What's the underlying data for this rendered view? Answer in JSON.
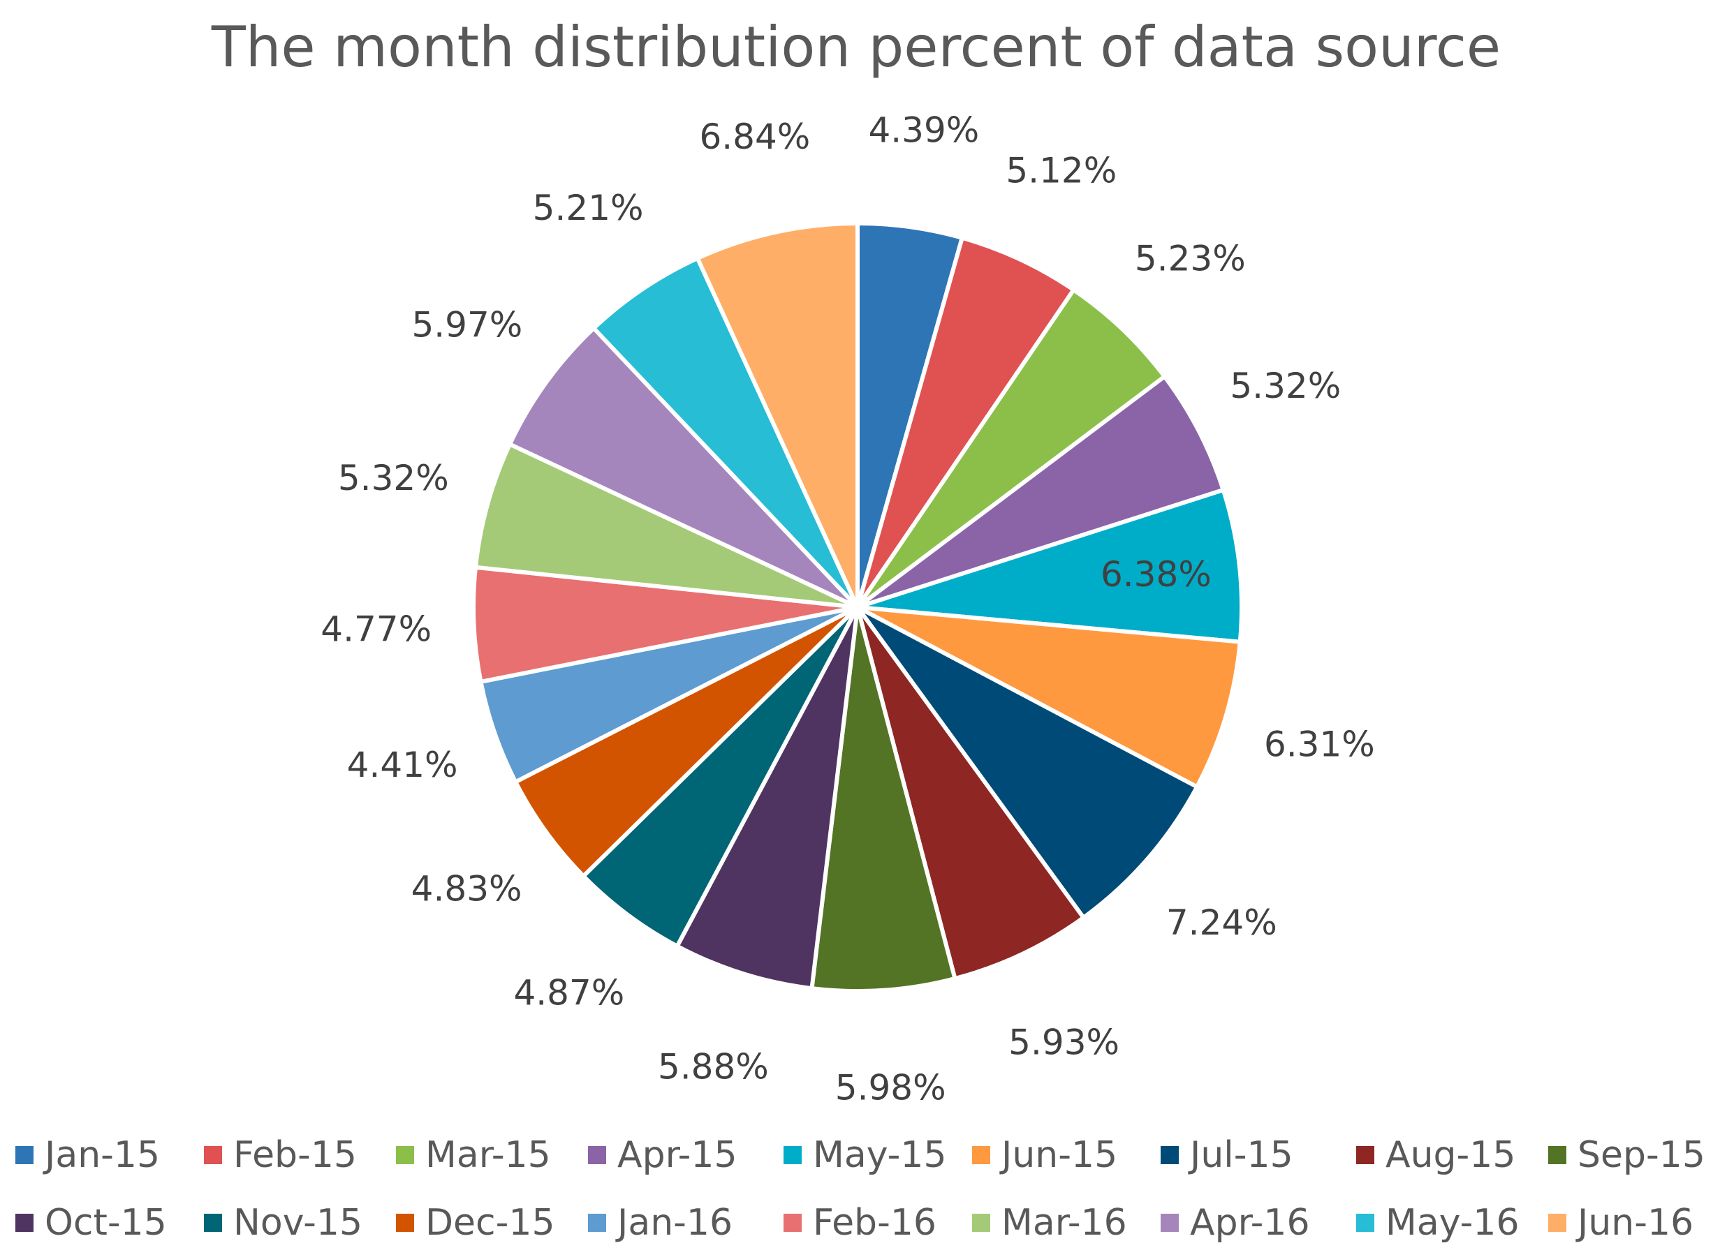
{
  "chart_data": {
    "type": "pie",
    "title": "The month distribution percent of data source",
    "categories": [
      "Jan-15",
      "Feb-15",
      "Mar-15",
      "Apr-15",
      "May-15",
      "Jun-15",
      "Jul-15",
      "Aug-15",
      "Sep-15",
      "Oct-15",
      "Nov-15",
      "Dec-15",
      "Jan-16",
      "Feb-16",
      "Mar-16",
      "Apr-16",
      "May-16",
      "Jun-16"
    ],
    "values": [
      4.39,
      5.12,
      5.23,
      5.32,
      6.38,
      6.31,
      7.24,
      5.93,
      5.98,
      5.88,
      4.87,
      4.83,
      4.41,
      4.77,
      5.32,
      5.97,
      5.21,
      6.84
    ],
    "labels": [
      "4.39%",
      "5.12%",
      "5.23%",
      "5.32%",
      "6.38%",
      "6.31%",
      "7.24%",
      "5.93%",
      "5.98%",
      "5.88%",
      "4.87%",
      "4.83%",
      "4.41%",
      "4.77%",
      "5.32%",
      "5.97%",
      "5.21%",
      "6.84%"
    ],
    "colors": [
      "#2E75B6",
      "#E05252",
      "#8CBF4A",
      "#8B64A8",
      "#00ADC8",
      "#FF9940",
      "#004A78",
      "#8E2624",
      "#547425",
      "#4F3462",
      "#006575",
      "#D35400",
      "#5E9BD0",
      "#E87070",
      "#A4CA78",
      "#A586BC",
      "#27BDD4",
      "#FFAE68"
    ],
    "label_inside": [
      false,
      false,
      false,
      false,
      true,
      false,
      false,
      false,
      false,
      false,
      false,
      false,
      false,
      false,
      false,
      false,
      false,
      false
    ],
    "start_angle_deg": 0,
    "direction": "clockwise",
    "legend_position": "bottom"
  }
}
